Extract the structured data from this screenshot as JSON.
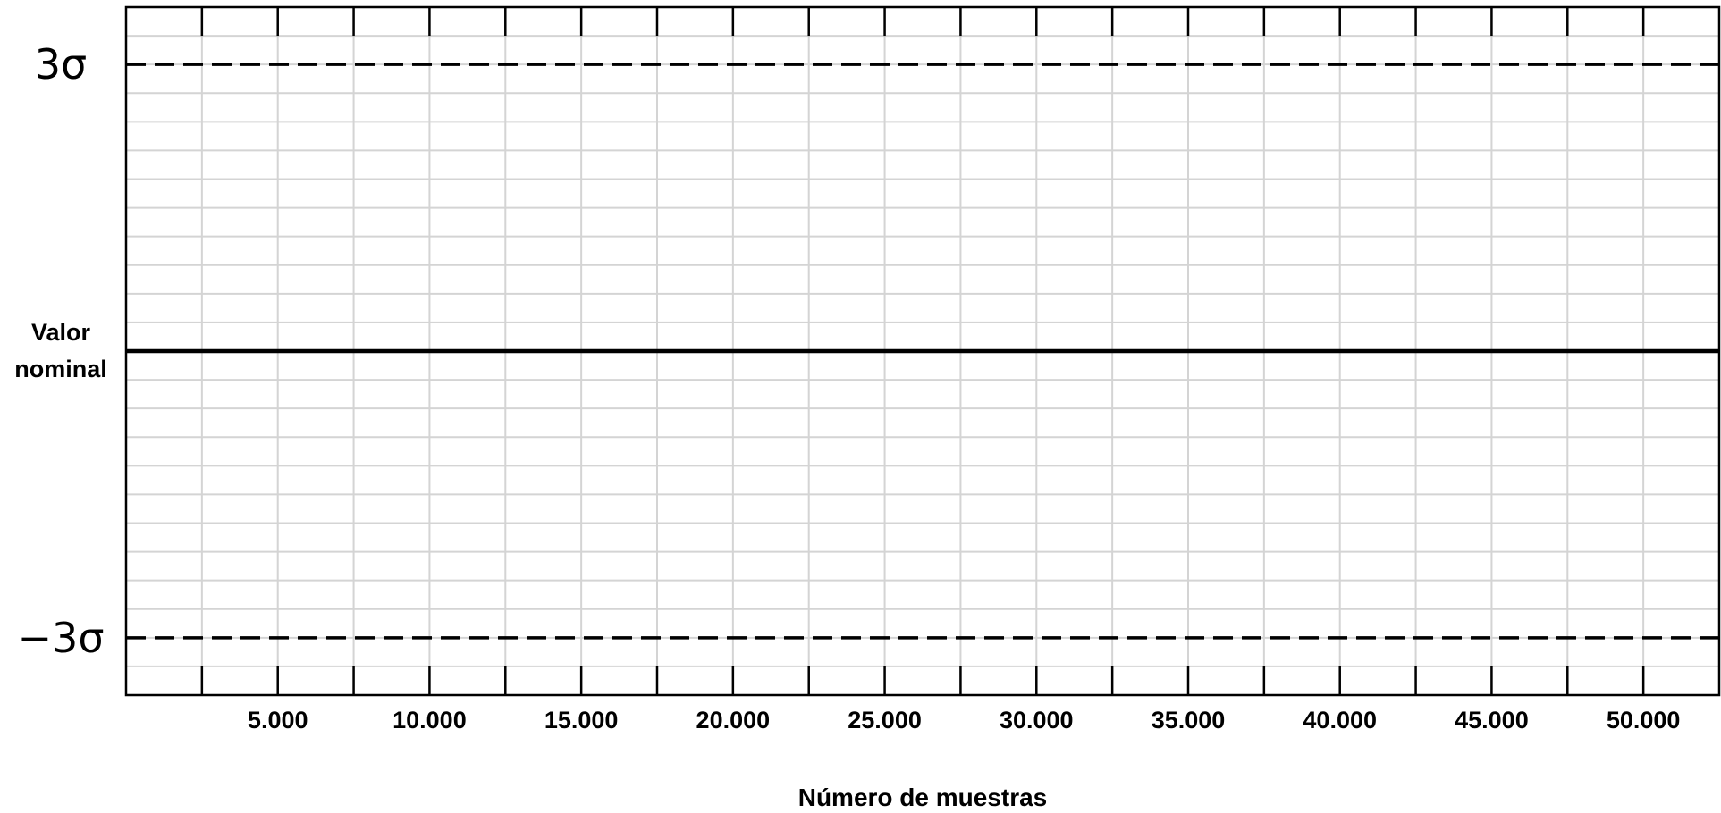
{
  "chart_data": {
    "type": "line",
    "title": "",
    "xlabel": "Número de muestras",
    "ylabel": "",
    "x_ticks": [
      {
        "value": 5000,
        "label": "5.000"
      },
      {
        "value": 10000,
        "label": "10.000"
      },
      {
        "value": 15000,
        "label": "15.000"
      },
      {
        "value": 20000,
        "label": "20.000"
      },
      {
        "value": 25000,
        "label": "25.000"
      },
      {
        "value": 30000,
        "label": "30.000"
      },
      {
        "value": 35000,
        "label": "35.000"
      },
      {
        "value": 40000,
        "label": "40.000"
      },
      {
        "value": 45000,
        "label": "45.000"
      },
      {
        "value": 50000,
        "label": "50.000"
      }
    ],
    "xlim": [
      0,
      52500
    ],
    "ylim": [
      -3.6,
      3.6
    ],
    "grid": true,
    "reference_lines": [
      {
        "y": 3,
        "label": "3σ",
        "style": "dashed"
      },
      {
        "y": 0,
        "label": "Valor nominal",
        "label_lines": [
          "Valor",
          "nominal"
        ],
        "style": "solid"
      },
      {
        "y": -3,
        "label": "−3σ",
        "style": "dashed"
      }
    ],
    "series": []
  }
}
